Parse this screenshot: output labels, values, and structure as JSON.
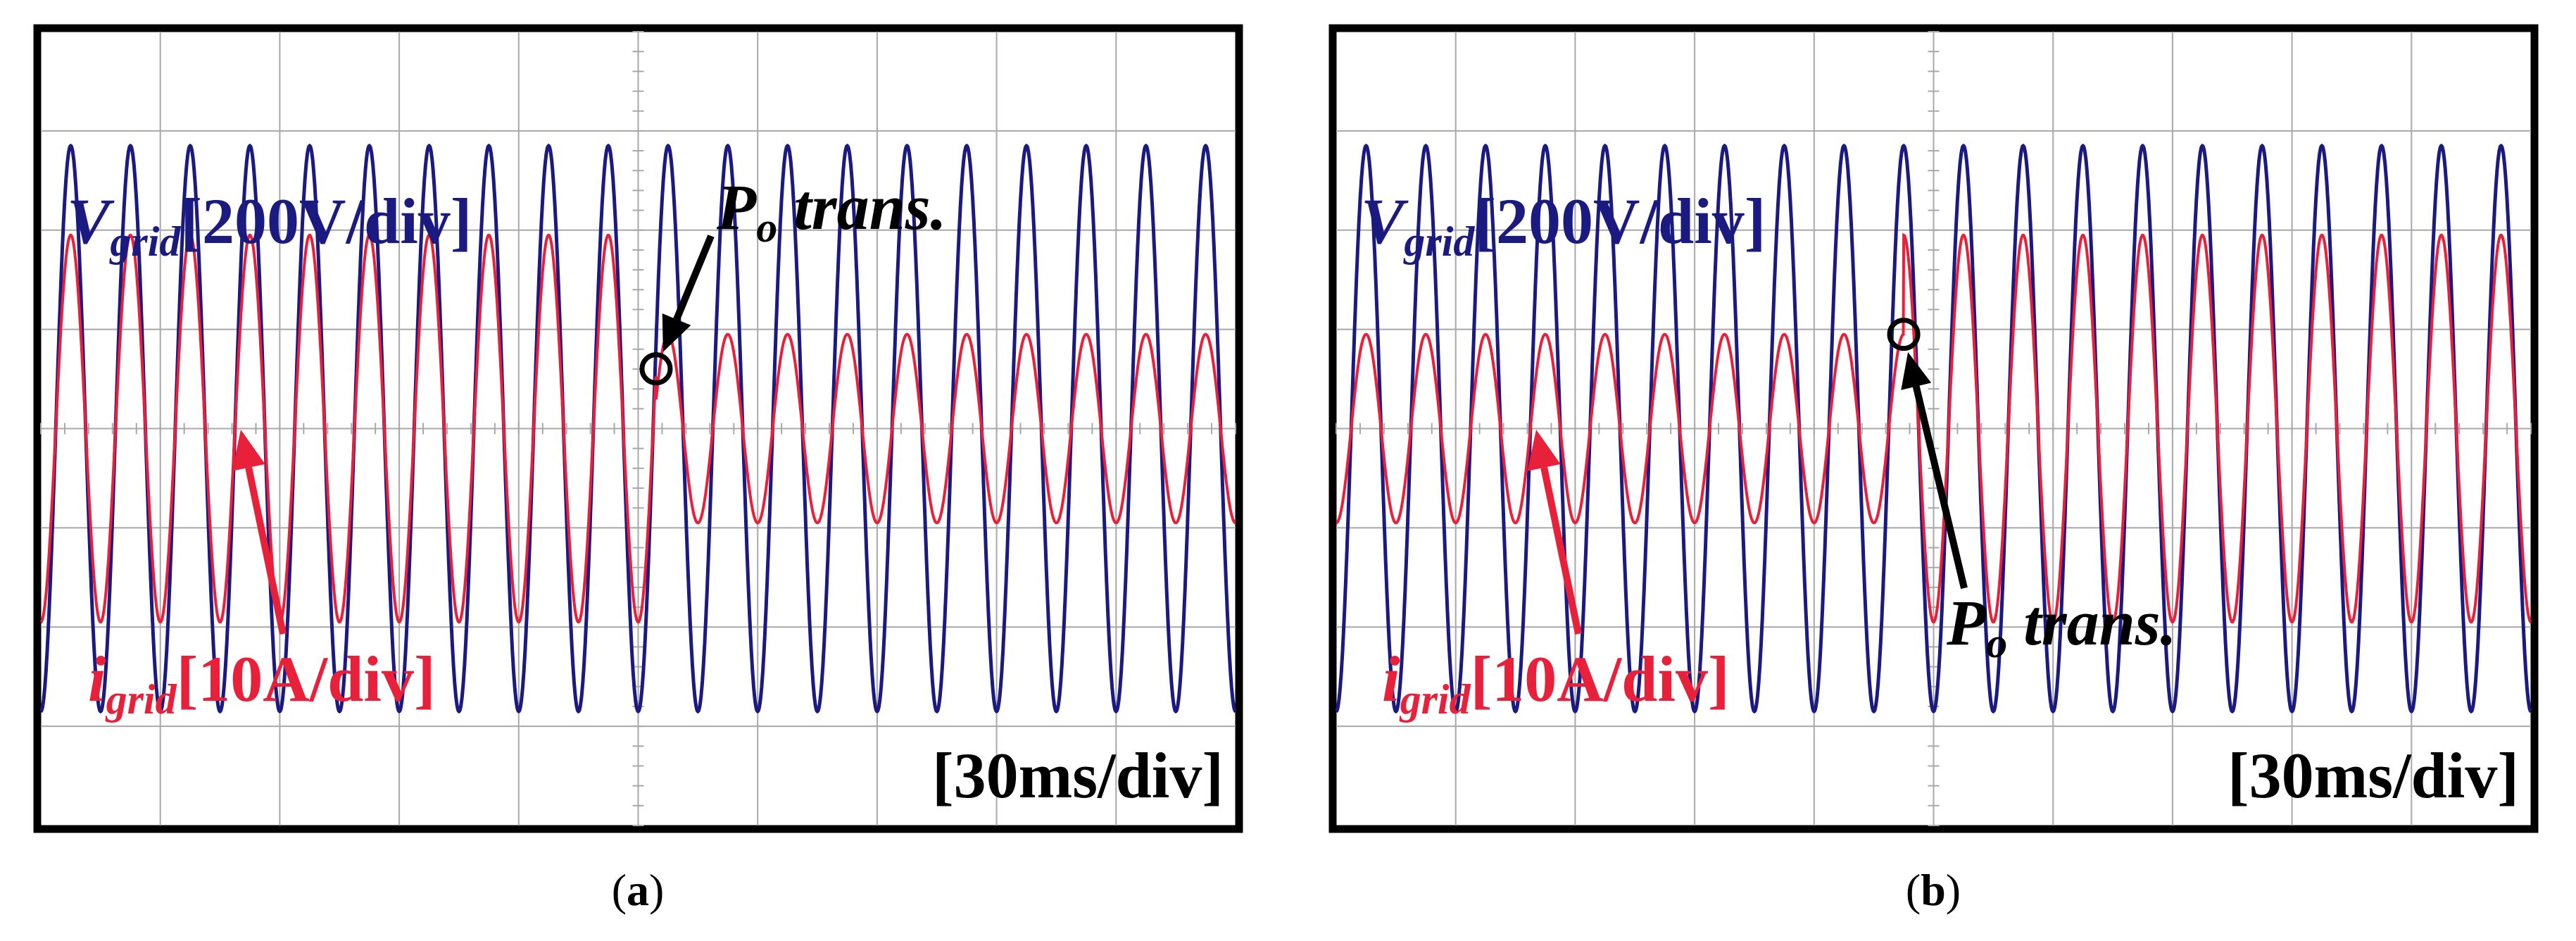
{
  "colors": {
    "voltage": "#1a1a80",
    "current": "#e8203a",
    "frame": "#000000",
    "grid": "#a8a8a8",
    "annotation": "#000000"
  },
  "chart_data": [
    {
      "type": "line",
      "panel_label": "a",
      "caption_open": "(",
      "caption_close": ")",
      "time_div_label": "[30ms/div]",
      "voltage_label": {
        "symbol": "V",
        "subscript": "grid",
        "scale": "[200V/div]"
      },
      "current_label": {
        "symbol": "i",
        "subscript": "grid",
        "scale": "[10A/div]"
      },
      "transition_label": {
        "symbol": "P",
        "subscript": "o",
        "text": " trans."
      },
      "x_divisions": 10,
      "y_divisions": 8,
      "x_range_div": [
        0,
        10
      ],
      "y_range_div": [
        -4,
        4
      ],
      "cycles": 20,
      "transition_div": 5.15,
      "series": [
        {
          "name": "V_grid",
          "amplitude_div": [
            2.85,
            2.85
          ],
          "phase_deg": 180
        },
        {
          "name": "i_grid",
          "amplitude_div": [
            1.95,
            0.95
          ],
          "phase_deg": 180
        }
      ]
    },
    {
      "type": "line",
      "panel_label": "b",
      "caption_open": "(",
      "caption_close": ")",
      "time_div_label": "[30ms/div]",
      "voltage_label": {
        "symbol": "V",
        "subscript": "grid",
        "scale": "[200V/div]"
      },
      "current_label": {
        "symbol": "i",
        "subscript": "grid",
        "scale": "[10A/div]"
      },
      "transition_label": {
        "symbol": "P",
        "subscript": "o",
        "text": " trans."
      },
      "x_divisions": 10,
      "y_divisions": 8,
      "x_range_div": [
        0,
        10
      ],
      "y_range_div": [
        -4,
        4
      ],
      "cycles": 20,
      "transition_div": 4.75,
      "series": [
        {
          "name": "V_grid",
          "amplitude_div": [
            2.85,
            2.85
          ],
          "phase_deg": 180
        },
        {
          "name": "i_grid",
          "amplitude_div": [
            0.95,
            1.95
          ],
          "phase_deg": 180
        }
      ]
    }
  ]
}
